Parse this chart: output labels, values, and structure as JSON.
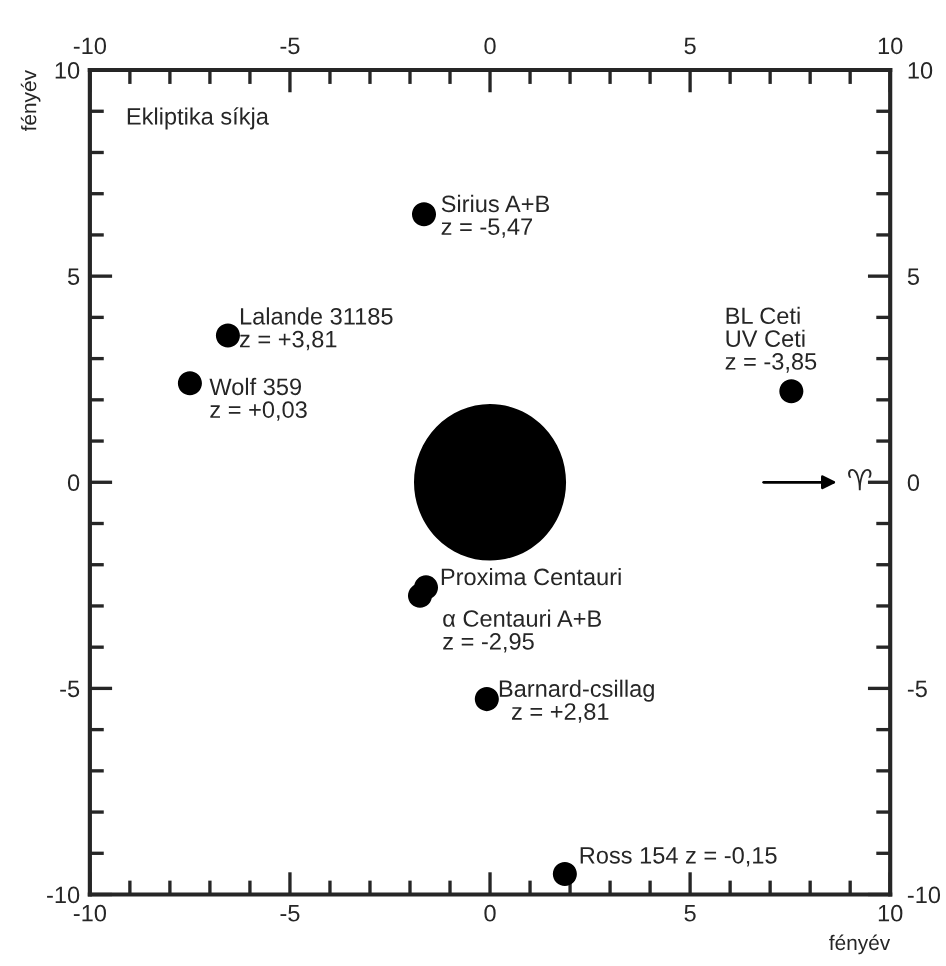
{
  "chart_data": {
    "type": "scatter",
    "xlabel": "fényév",
    "ylabel": "fényév",
    "x": [
      -1.65,
      -6.55,
      -7.5,
      7.53,
      -1.6,
      -1.75,
      -0.08,
      1.87
    ],
    "values": [
      6.5,
      3.56,
      2.4,
      2.21,
      -2.55,
      -2.75,
      -5.26,
      -9.5
    ],
    "color": "#000000",
    "marker": "circle",
    "xlim": [
      -10,
      10
    ],
    "ylim": [
      -10,
      10
    ],
    "xticks": [
      -10,
      {
        "value": -9,
        "label": null
      },
      {
        "value": -8,
        "label": null
      },
      {
        "value": -7,
        "label": null
      },
      {
        "value": -6,
        "label": null
      },
      -5,
      {
        "value": -4,
        "label": null
      },
      {
        "value": -3,
        "label": null
      },
      {
        "value": -2,
        "label": null
      },
      {
        "value": -1,
        "label": null
      },
      0,
      {
        "value": 1,
        "label": null
      },
      {
        "value": 2,
        "label": null
      },
      {
        "value": 3,
        "label": null
      },
      {
        "value": 4,
        "label": null
      },
      5,
      {
        "value": 6,
        "label": null
      },
      {
        "value": 7,
        "label": null
      },
      {
        "value": 8,
        "label": null
      },
      {
        "value": 9,
        "label": null
      },
      10
    ],
    "yticks": [
      -10,
      {
        "value": -9,
        "label": null
      },
      {
        "value": -8,
        "label": null
      },
      {
        "value": -7,
        "label": null
      },
      {
        "value": -6,
        "label": null
      },
      -5,
      {
        "value": -4,
        "label": null
      },
      {
        "value": -3,
        "label": null
      },
      {
        "value": -2,
        "label": null
      },
      {
        "value": -1,
        "label": null
      },
      0,
      {
        "value": 1,
        "label": null
      },
      {
        "value": 2,
        "label": null
      },
      {
        "value": 3,
        "label": null
      },
      {
        "value": 4,
        "label": null
      },
      5,
      {
        "value": 6,
        "label": null
      },
      {
        "value": 7,
        "label": null
      },
      {
        "value": 8,
        "label": null
      },
      {
        "value": 9,
        "label": null
      },
      10
    ],
    "x2lim": [
      -10,
      10
    ],
    "x2ticks": [
      -10,
      -5,
      0,
      5,
      10
    ],
    "y2lim": [
      -10,
      10
    ],
    "y2ticks": [
      -10,
      -5,
      0,
      5,
      10
    ],
    "grid": false,
    "annotations": [
      "Ekliptika síkja",
      "♈",
      {
        "text": "Sirius A+B\nz = -5,47",
        "x": -1.65,
        "y": 6.5
      },
      {
        "text": "Lalande 31185\nz = +3,81",
        "x": -6.55,
        "y": 3.56
      },
      {
        "text": "Wolf 359\nz = +0,03",
        "x": -7.5,
        "y": 2.4
      },
      {
        "text": "BL Ceti\nUV Ceti\nz = -3,85",
        "x": 7.53,
        "y": 2.21
      },
      {
        "text": "Proxima Centauri",
        "x": -1.6,
        "y": -2.55
      },
      {
        "text": "α Centauri A+B\nz = -2,95",
        "x": -1.75,
        "y": -2.75
      },
      {
        "text": "Barnard-csillag\n  z = +2,81",
        "x": -0.08,
        "y": -5.26
      },
      {
        "text": "Ross 154 z = -0,15",
        "x": 1.87,
        "y": -9.5
      }
    ]
  }
}
